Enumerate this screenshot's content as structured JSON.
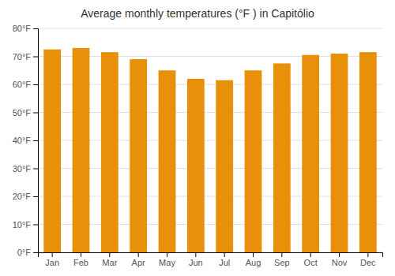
{
  "chart_data": {
    "type": "bar",
    "title": "Average monthly temperatures (°F ) in Capitólio",
    "categories": [
      "Jan",
      "Feb",
      "Mar",
      "Apr",
      "May",
      "Jun",
      "Jul",
      "Aug",
      "Sep",
      "Oct",
      "Nov",
      "Dec"
    ],
    "values": [
      72.5,
      73.0,
      71.5,
      69.0,
      65.0,
      62.0,
      61.5,
      65.0,
      67.5,
      70.5,
      71.0,
      71.5
    ],
    "color": "#E8900A",
    "ylim": [
      0,
      80
    ],
    "yticks": [
      {
        "value": 0,
        "label": "0°F"
      },
      {
        "value": 10,
        "label": "10°F"
      },
      {
        "value": 20,
        "label": "20°F"
      },
      {
        "value": 30,
        "label": "30°F"
      },
      {
        "value": 40,
        "label": "40°F"
      },
      {
        "value": 50,
        "label": "50°F"
      },
      {
        "value": 60,
        "label": "60°F"
      },
      {
        "value": 70,
        "label": "70°F"
      },
      {
        "value": 80,
        "label": "80°F"
      }
    ],
    "grid": true
  }
}
